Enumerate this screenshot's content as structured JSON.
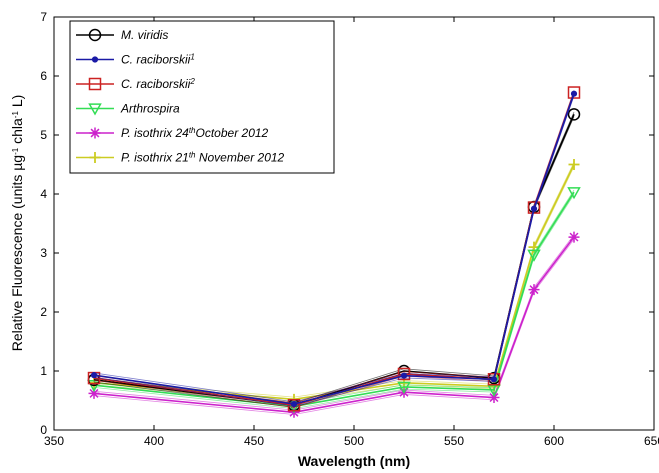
{
  "chart_data": {
    "type": "line",
    "title": "",
    "xlabel": "Wavelength (nm)",
    "ylabel": {
      "parts": [
        {
          "text": "Relative Fluorescence (units µg",
          "sup": false
        },
        {
          "text": "-1",
          "sup": true
        },
        {
          "text": " chla",
          "sup": false
        },
        {
          "text": "-1",
          "sup": true
        },
        {
          "text": " L)",
          "sup": false
        }
      ]
    },
    "xlim": [
      350,
      650
    ],
    "ylim": [
      0,
      7
    ],
    "xticks": [
      350,
      400,
      450,
      500,
      550,
      600,
      650
    ],
    "yticks": [
      0,
      1,
      2,
      3,
      4,
      5,
      6,
      7
    ],
    "grid": false,
    "legend_position": "top-left",
    "x": [
      370,
      470,
      525,
      570,
      590,
      610
    ],
    "series": [
      {
        "name": "M. viridis",
        "name_parts": [
          {
            "text": "M. viridis",
            "sup": false
          }
        ],
        "color": "#000000",
        "marker": "circle",
        "values": [
          0.85,
          0.42,
          1.0,
          0.88,
          3.78,
          5.35
        ]
      },
      {
        "name": "C. raciborskii1",
        "name_parts": [
          {
            "text": "C. raciborskii",
            "sup": false
          },
          {
            "text": "1",
            "sup": true
          }
        ],
        "color": "#1a1aa6",
        "marker": "dot",
        "values": [
          0.93,
          0.44,
          0.92,
          0.86,
          3.75,
          5.7
        ]
      },
      {
        "name": "C. raciborskii2",
        "name_parts": [
          {
            "text": "C. raciborskii",
            "sup": false
          },
          {
            "text": "2",
            "sup": true
          }
        ],
        "color": "#cc2222",
        "marker": "square",
        "values": [
          0.88,
          0.42,
          0.95,
          0.86,
          3.77,
          5.72
        ]
      },
      {
        "name": "Arthrospira",
        "name_parts": [
          {
            "text": "Arthrospira",
            "sup": false
          }
        ],
        "color": "#33dd55",
        "marker": "triangle-down",
        "values": [
          0.76,
          0.4,
          0.73,
          0.68,
          2.97,
          4.03
        ]
      },
      {
        "name": "P. isothrix 24thOctober 2012",
        "name_parts": [
          {
            "text": "P. isothrix 24",
            "sup": false
          },
          {
            "text": "th",
            "sup": true
          },
          {
            "text": "October 2012",
            "sup": false
          }
        ],
        "color": "#cc22cc",
        "marker": "asterisk",
        "values": [
          0.62,
          0.3,
          0.64,
          0.55,
          2.38,
          3.27
        ]
      },
      {
        "name": "P. isothrix 21th November 2012",
        "name_parts": [
          {
            "text": "P. isothrix 21",
            "sup": false
          },
          {
            "text": "th",
            "sup": true
          },
          {
            "text": " November 2012",
            "sup": false
          }
        ],
        "color": "#cccc22",
        "marker": "plus",
        "values": [
          0.8,
          0.52,
          0.8,
          0.74,
          3.1,
          4.5
        ]
      }
    ]
  }
}
